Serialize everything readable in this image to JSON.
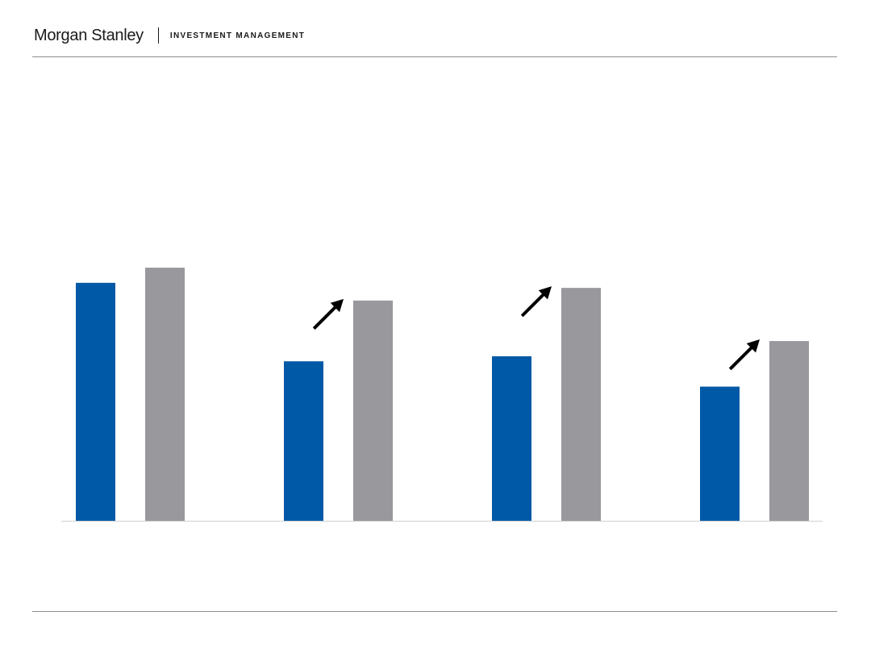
{
  "header": {
    "brand": "Morgan Stanley",
    "division": "INVESTMENT MANAGEMENT"
  },
  "chart_data": {
    "type": "bar",
    "categories": [
      "",
      "",
      "",
      ""
    ],
    "series": [
      {
        "color": "#0059a6",
        "values": [
          94,
          63,
          65,
          53
        ]
      },
      {
        "color": "#98989d",
        "values": [
          100,
          87,
          92,
          71
        ]
      }
    ],
    "ylim": [
      0,
      100
    ],
    "grid": false,
    "legend": "none",
    "arrows_on_groups": [
      1,
      2,
      3
    ]
  }
}
